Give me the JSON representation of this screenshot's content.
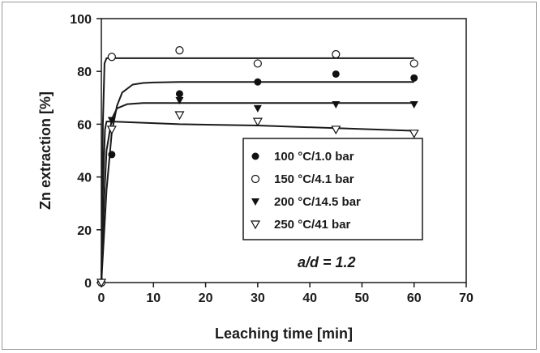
{
  "chart_data": {
    "type": "scatter",
    "xlabel": "Leaching time [min]",
    "ylabel": "Zn extraction [%]",
    "xlim": [
      0,
      70
    ],
    "ylim": [
      0,
      100
    ],
    "x_ticks": [
      "0",
      "10",
      "20",
      "30",
      "40",
      "50",
      "60",
      "70"
    ],
    "y_ticks": [
      "0",
      "20",
      "40",
      "60",
      "80",
      "100"
    ],
    "grid": false,
    "legend_position": "center-right",
    "annotation": "a/d = 1.2",
    "series": [
      {
        "name": "100 °C/1.0 bar",
        "marker": "filled-circle",
        "x": [
          0,
          2,
          15,
          30,
          45,
          60
        ],
        "y": [
          0,
          48.5,
          71.5,
          76,
          79,
          77.5
        ],
        "fit": {
          "x": [
            0,
            1,
            2,
            3,
            4,
            6,
            8,
            10,
            15,
            20,
            30,
            45,
            60
          ],
          "y": [
            0,
            35,
            57,
            67,
            72,
            75,
            75.6,
            75.8,
            76,
            76,
            76,
            76,
            76
          ]
        }
      },
      {
        "name": "150 °C/4.1 bar",
        "marker": "open-circle",
        "x": [
          0,
          2,
          15,
          30,
          45,
          60
        ],
        "y": [
          0,
          85.5,
          88,
          83,
          86.5,
          83
        ],
        "fit": {
          "x": [
            0,
            0.3,
            0.6,
            1,
            2,
            15,
            30,
            45,
            60
          ],
          "y": [
            0,
            60,
            83,
            85,
            85,
            85,
            85,
            85,
            85
          ]
        }
      },
      {
        "name": "200 °C/14.5 bar",
        "marker": "filled-triangle-down",
        "x": [
          0,
          2,
          15,
          30,
          45,
          60
        ],
        "y": [
          0,
          61.5,
          69,
          66,
          67.5,
          67.5
        ],
        "fit": {
          "x": [
            0,
            0.5,
            1,
            2,
            3,
            5,
            8,
            15,
            30,
            45,
            60
          ],
          "y": [
            0,
            30,
            50,
            62,
            66,
            67.6,
            68,
            68,
            68,
            68,
            68
          ]
        }
      },
      {
        "name": "250 °C/41 bar",
        "marker": "open-triangle-down",
        "x": [
          0,
          2,
          15,
          30,
          45,
          60
        ],
        "y": [
          0,
          58,
          63.5,
          61,
          58,
          56.5
        ],
        "fit": {
          "x": [
            0,
            0.3,
            0.7,
            1,
            2,
            15,
            30,
            45,
            60
          ],
          "y": [
            0,
            35,
            58,
            61,
            61,
            60,
            59.5,
            58.5,
            57.5
          ]
        }
      }
    ]
  }
}
